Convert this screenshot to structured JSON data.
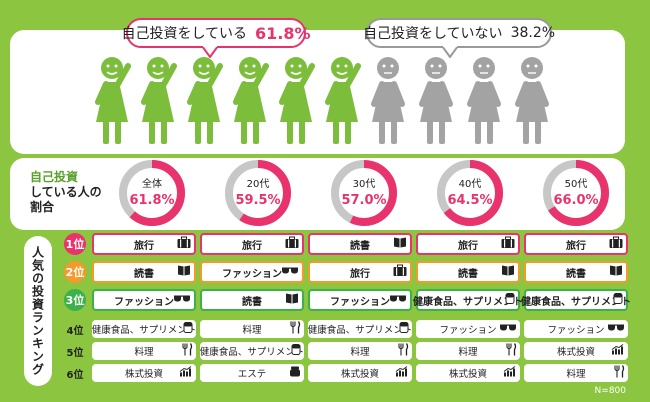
{
  "bubbles": {
    "yes": {
      "label": "自己投資をしている",
      "pct": "61.8%"
    },
    "no": {
      "label": "自己投資をしていない",
      "pct": "38.2%"
    }
  },
  "figures": {
    "yes_count": 6,
    "no_count": 4,
    "yes_color": "#7cbd3c",
    "no_color": "#a3a3a3"
  },
  "rate_label": {
    "line1": "自己投資",
    "line2": "している人の",
    "line3": "割合"
  },
  "donuts": [
    {
      "age": "全体",
      "pct": "61.8%",
      "value": 61.8
    },
    {
      "age": "20代",
      "pct": "59.5%",
      "value": 59.5
    },
    {
      "age": "30代",
      "pct": "57.0%",
      "value": 57.0
    },
    {
      "age": "40代",
      "pct": "64.5%",
      "value": 64.5
    },
    {
      "age": "50代",
      "pct": "66.0%",
      "value": 66.0
    }
  ],
  "ranking_label": "人気の投資ランキング",
  "ranks": [
    "1位",
    "2位",
    "3位",
    "4位",
    "5位",
    "6位"
  ],
  "ranking": [
    [
      "旅行",
      "旅行",
      "読書",
      "旅行",
      "旅行"
    ],
    [
      "読書",
      "ファッション",
      "旅行",
      "読書",
      "読書"
    ],
    [
      "ファッション",
      "読書",
      "ファッション",
      "健康食品、サプリメント",
      "健康食品、サプリメント"
    ],
    [
      "健康食品、サプリメント",
      "料理",
      "健康食品、サプリメント",
      "ファッション",
      "ファッション"
    ],
    [
      "料理",
      "健康食品、サプリメント",
      "料理",
      "料理",
      "株式投資"
    ],
    [
      "株式投資",
      "エステ",
      "株式投資",
      "株式投資",
      "料理"
    ]
  ],
  "ranking_icons": [
    [
      "suitcase-icon",
      "suitcase-icon",
      "book-icon",
      "suitcase-icon",
      "suitcase-icon"
    ],
    [
      "book-icon",
      "sunglasses-icon",
      "suitcase-icon",
      "book-icon",
      "book-icon"
    ],
    [
      "sunglasses-icon",
      "book-icon",
      "sunglasses-icon",
      "pill-icon",
      "pill-icon"
    ],
    [
      "pill-icon",
      "utensils-icon",
      "pill-icon",
      "sunglasses-icon",
      "sunglasses-icon"
    ],
    [
      "utensils-icon",
      "pill-icon",
      "utensils-icon",
      "utensils-icon",
      "stock-chart-icon"
    ],
    [
      "stock-chart-icon",
      "cream-jar-icon",
      "stock-chart-icon",
      "stock-chart-icon",
      "utensils-icon"
    ]
  ],
  "colors": {
    "background": "#8cc540",
    "accent_pink": "#e8336d",
    "rank2": "#f39a2b",
    "rank3": "#3cb04a",
    "grey": "#c7c7c7"
  },
  "sample_size": "N=800"
}
